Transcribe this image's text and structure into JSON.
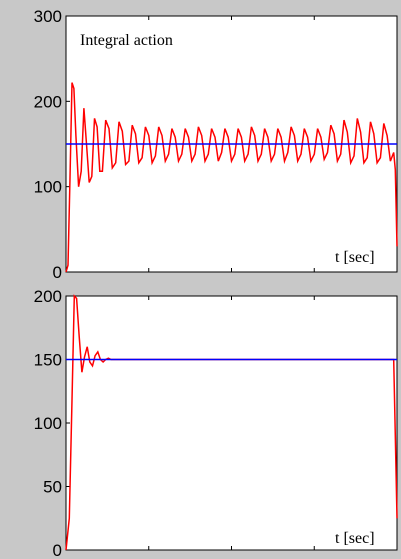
{
  "colors": {
    "background": "#c8c8c8",
    "plot_area": "#ffffff",
    "response": "#ff0000",
    "setpoint": "#0000ff"
  },
  "chart_data": [
    {
      "type": "line",
      "title": "Integral action",
      "xlabel": "t [sec]",
      "ylabel": "",
      "ylim": [
        0,
        300
      ],
      "xlim": [
        0,
        1
      ],
      "yticks": [
        "0",
        "100",
        "200",
        "300"
      ],
      "grid": false,
      "series": [
        {
          "values_description_free": true,
          "x": [
            0,
            0.006,
            0.012,
            0.018,
            0.024,
            0.03,
            0.038,
            0.046,
            0.054,
            0.062,
            0.07,
            0.078,
            0.086,
            0.094,
            0.102,
            0.11,
            0.12,
            0.13,
            0.14,
            0.15,
            0.16,
            0.17,
            0.18,
            0.19,
            0.2,
            0.21,
            0.22,
            0.23,
            0.24,
            0.25,
            0.26,
            0.27,
            0.28,
            0.29,
            0.3,
            0.31,
            0.32,
            0.33,
            0.34,
            0.35,
            0.36,
            0.37,
            0.38,
            0.39,
            0.4,
            0.41,
            0.42,
            0.43,
            0.44,
            0.45,
            0.46,
            0.47,
            0.48,
            0.49,
            0.5,
            0.51,
            0.52,
            0.53,
            0.54,
            0.55,
            0.56,
            0.57,
            0.58,
            0.59,
            0.6,
            0.61,
            0.62,
            0.63,
            0.64,
            0.65,
            0.66,
            0.67,
            0.68,
            0.69,
            0.7,
            0.71,
            0.72,
            0.73,
            0.74,
            0.75,
            0.76,
            0.77,
            0.78,
            0.79,
            0.8,
            0.81,
            0.82,
            0.83,
            0.84,
            0.85,
            0.86,
            0.87,
            0.88,
            0.89,
            0.9,
            0.91,
            0.92,
            0.93,
            0.94,
            0.95,
            0.96,
            0.97,
            0.98,
            0.99,
            0.995,
            1.0
          ],
          "values": [
            0,
            8,
            110,
            222,
            215,
            160,
            100,
            118,
            192,
            150,
            105,
            112,
            180,
            170,
            118,
            118,
            178,
            168,
            122,
            128,
            176,
            165,
            126,
            130,
            172,
            162,
            128,
            134,
            170,
            160,
            128,
            136,
            170,
            160,
            130,
            138,
            168,
            158,
            130,
            138,
            168,
            158,
            130,
            138,
            170,
            160,
            130,
            138,
            168,
            158,
            130,
            140,
            168,
            158,
            130,
            138,
            168,
            158,
            130,
            138,
            170,
            160,
            130,
            138,
            168,
            158,
            130,
            138,
            168,
            158,
            130,
            140,
            170,
            160,
            130,
            138,
            168,
            158,
            130,
            138,
            168,
            158,
            132,
            140,
            172,
            162,
            130,
            138,
            178,
            164,
            128,
            136,
            180,
            164,
            128,
            134,
            176,
            162,
            128,
            134,
            174,
            160,
            130,
            140,
            120,
            30
          ]
        },
        {
          "x": [
            0,
            1
          ],
          "values": [
            150,
            150
          ]
        }
      ]
    },
    {
      "type": "line",
      "title": "",
      "xlabel": "t [sec]",
      "ylabel": "",
      "ylim": [
        0,
        200
      ],
      "xlim": [
        0,
        1
      ],
      "yticks": [
        "0",
        "50",
        "100",
        "150",
        "200"
      ],
      "grid": false,
      "series": [
        {
          "x": [
            0,
            0.01,
            0.018,
            0.025,
            0.032,
            0.04,
            0.048,
            0.056,
            0.064,
            0.072,
            0.08,
            0.088,
            0.096,
            0.104,
            0.112,
            0.12,
            0.128,
            0.136,
            0.15,
            0.2,
            0.3,
            0.4,
            0.5,
            0.6,
            0.7,
            0.8,
            0.9,
            0.99,
            0.995,
            1.0
          ],
          "values": [
            0,
            25,
            118,
            200,
            198,
            168,
            140,
            152,
            160,
            148,
            145,
            153,
            156,
            150,
            148,
            150,
            151,
            150,
            150,
            150,
            150,
            150,
            150,
            150,
            150,
            150,
            150,
            150,
            90,
            25
          ]
        },
        {
          "x": [
            0,
            1
          ],
          "values": [
            150,
            150
          ]
        }
      ]
    }
  ]
}
